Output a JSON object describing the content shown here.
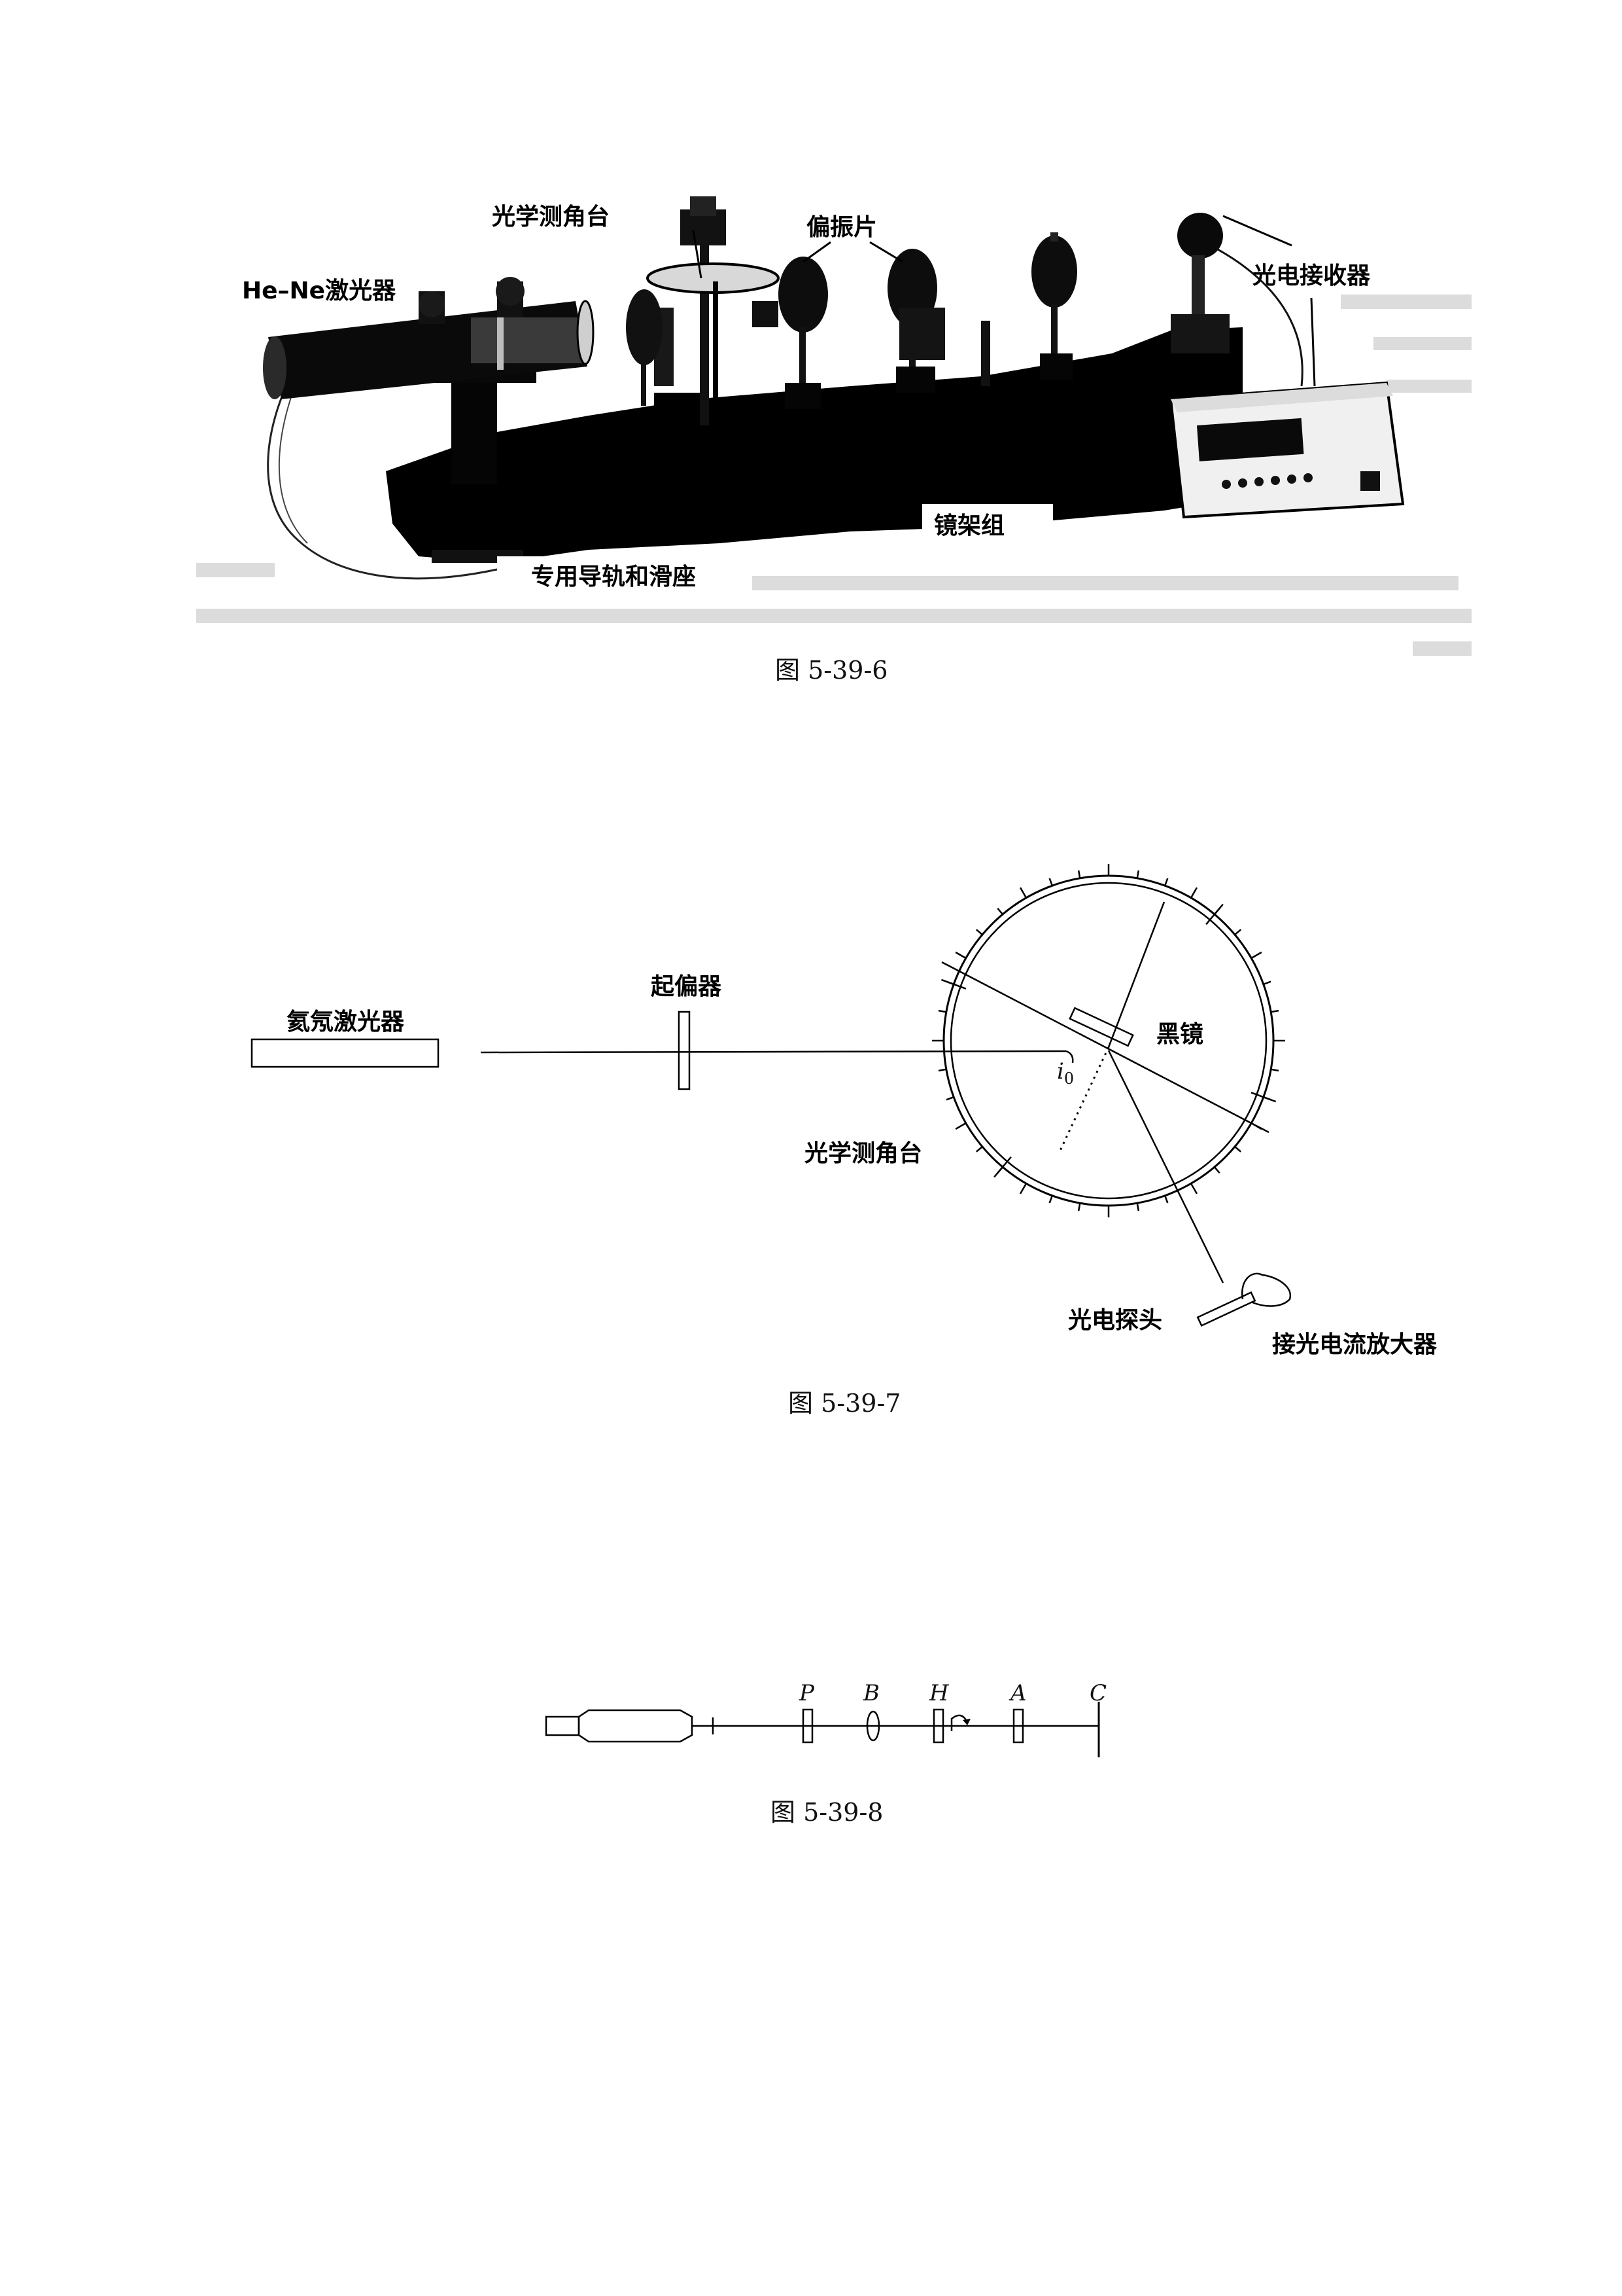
{
  "figure_6": {
    "labels": {
      "laser": "He–Ne激光器",
      "goniometer": "光学测角台",
      "polarizer": "偏振片",
      "receiver": "光电接收器",
      "mirror_group": "镜架组",
      "rail": "专用导轨和滑座"
    },
    "caption": "图 5-39-6"
  },
  "figure_7": {
    "labels": {
      "laser": "氦氖激光器",
      "polarizer": "起偏器",
      "black_mirror": "黑镜",
      "goniometer": "光学测角台",
      "angle_base": "i",
      "angle_sub": "0",
      "probe": "光电探头",
      "amplifier": "接光电流放大器"
    },
    "caption": "图 5-39-7"
  },
  "figure_8": {
    "labels": [
      "P",
      "B",
      "H",
      "A",
      "C"
    ],
    "caption": "图 5-39-8"
  }
}
